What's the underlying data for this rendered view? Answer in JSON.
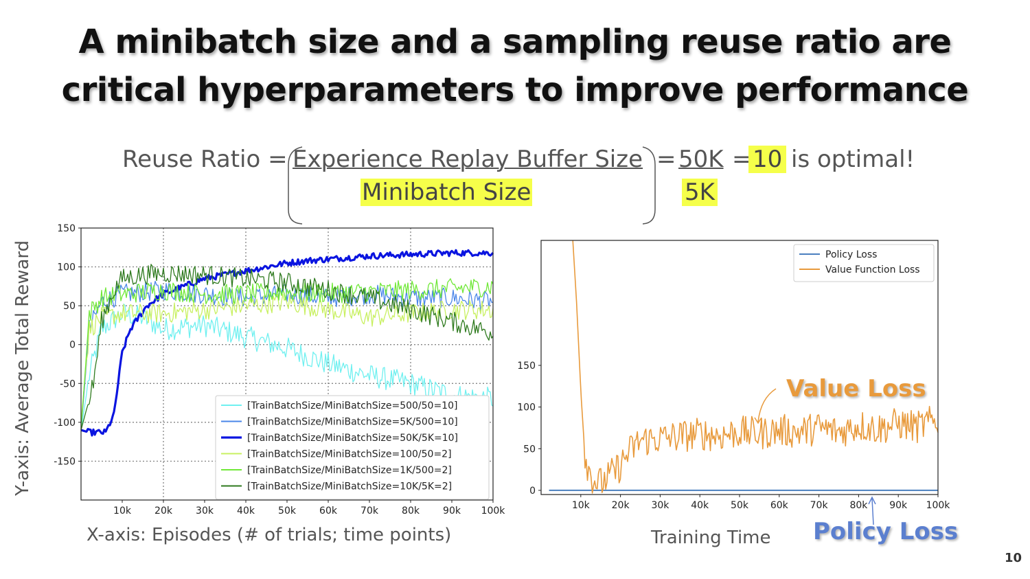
{
  "slide": {
    "title_line1": "A minibatch size and a sampling reuse ratio are",
    "title_line2": "critical hyperparameters to improve performance",
    "equation": {
      "lhs": "Reuse Ratio =",
      "numerator": "Experience Replay Buffer Size",
      "denominator": "Minibatch Size",
      "equals1": "=",
      "num_value": "50K",
      "den_value": "5K",
      "equals2": "=",
      "result": "10",
      "suffix": "is optimal!"
    },
    "x_axis_note": "X-axis: Episodes (# of trials; time points)",
    "y_axis_note": "Y-axis: Average Total Reward",
    "training_time_note": "Training Time",
    "value_loss_callout": "Value Loss",
    "policy_loss_callout": "Policy Loss",
    "page_number": "10"
  },
  "colors": {
    "highlight": "#f5ff4a",
    "value_loss": "#e89a3c",
    "policy_loss": "#5b7fcf"
  },
  "chart_data": [
    {
      "type": "line",
      "xlim": [
        0,
        100000
      ],
      "ylim": [
        -200,
        150
      ],
      "xticks": [
        10000,
        20000,
        30000,
        40000,
        50000,
        60000,
        70000,
        80000,
        90000,
        100000
      ],
      "xtick_labels": [
        "10k",
        "20k",
        "30k",
        "40k",
        "50k",
        "60k",
        "70k",
        "80k",
        "90k",
        "100k"
      ],
      "yticks": [
        150,
        100,
        50,
        0,
        -50,
        -100,
        -150
      ],
      "ytick_labels": [
        "150",
        "100",
        "50",
        "0",
        "-50",
        "-100",
        "-150"
      ],
      "grid": true,
      "legend_position": "bottom-right",
      "series": [
        {
          "name": "[TrainBatchSize/MiniBatchSize=500/50=10]",
          "color": "#6ff0f0",
          "width": 1.3,
          "x": [
            0,
            2000,
            5000,
            10000,
            15000,
            20000,
            30000,
            40000,
            50000,
            60000,
            70000,
            80000,
            90000,
            100000
          ],
          "y": [
            -110,
            -40,
            20,
            40,
            35,
            20,
            25,
            10,
            -5,
            -25,
            -40,
            -50,
            -65,
            -70
          ]
        },
        {
          "name": "[TrainBatchSize/MiniBatchSize=5K/500=10]",
          "color": "#4a86e8",
          "width": 1.3,
          "x": [
            0,
            2000,
            5000,
            10000,
            20000,
            30000,
            40000,
            50000,
            60000,
            70000,
            80000,
            90000,
            100000
          ],
          "y": [
            -110,
            20,
            55,
            65,
            70,
            65,
            60,
            65,
            60,
            65,
            60,
            60,
            55
          ]
        },
        {
          "name": "[TrainBatchSize/MiniBatchSize=50K/5K=10]",
          "color": "#0a14e0",
          "width": 3.2,
          "x": [
            0,
            2000,
            6000,
            8000,
            9000,
            10000,
            12000,
            14000,
            16000,
            20000,
            25000,
            30000,
            35000,
            40000,
            45000,
            50000,
            55000,
            60000,
            65000,
            70000,
            75000,
            80000,
            85000,
            90000,
            95000,
            100000
          ],
          "y": [
            -110,
            -113,
            -113,
            -90,
            -50,
            -10,
            20,
            35,
            50,
            65,
            75,
            85,
            90,
            95,
            100,
            105,
            108,
            110,
            112,
            114,
            115,
            116,
            117,
            118,
            118,
            118
          ]
        },
        {
          "name": "[TrainBatchSize/MiniBatchSize=100/50=2]",
          "color": "#c8f060",
          "width": 1.3,
          "x": [
            0,
            2000,
            5000,
            10000,
            20000,
            30000,
            40000,
            50000,
            60000,
            70000,
            80000,
            90000,
            100000
          ],
          "y": [
            -100,
            20,
            35,
            40,
            40,
            45,
            50,
            55,
            45,
            35,
            40,
            45,
            45
          ]
        },
        {
          "name": "[TrainBatchSize/MiniBatchSize=1K/500=2]",
          "color": "#70e838",
          "width": 1.3,
          "x": [
            0,
            2000,
            5000,
            10000,
            20000,
            30000,
            40000,
            50000,
            60000,
            70000,
            80000,
            90000,
            100000
          ],
          "y": [
            -110,
            40,
            60,
            65,
            70,
            65,
            65,
            68,
            66,
            68,
            70,
            72,
            75
          ]
        },
        {
          "name": "[TrainBatchSize/MiniBatchSize=10K/5K=2]",
          "color": "#2e7a1e",
          "width": 1.3,
          "x": [
            0,
            3000,
            5000,
            8000,
            10000,
            15000,
            20000,
            30000,
            40000,
            50000,
            60000,
            70000,
            80000,
            90000,
            100000
          ],
          "y": [
            -110,
            -50,
            30,
            70,
            85,
            90,
            92,
            90,
            85,
            80,
            70,
            60,
            45,
            30,
            15
          ]
        }
      ]
    },
    {
      "type": "line",
      "xlim": [
        0,
        100000
      ],
      "ylim": [
        -5,
        300
      ],
      "xticks": [
        10000,
        20000,
        30000,
        40000,
        50000,
        60000,
        70000,
        80000,
        90000,
        100000
      ],
      "xtick_labels": [
        "10k",
        "20k",
        "30k",
        "40k",
        "50k",
        "60k",
        "70k",
        "80k",
        "90k",
        "100k"
      ],
      "yticks": [
        150,
        100,
        50,
        0
      ],
      "ytick_labels": [
        "150",
        "100",
        "50",
        "0"
      ],
      "grid": false,
      "legend_position": "top-right",
      "series": [
        {
          "name": "Policy Loss",
          "color": "#4a7fbf",
          "width": 2,
          "x": [
            2000,
            100000
          ],
          "y": [
            0,
            0
          ]
        },
        {
          "name": "Value Function Loss",
          "color": "#e89a3c",
          "width": 1.6,
          "x": [
            8000,
            9000,
            10000,
            11000,
            12000,
            13000,
            14000,
            15000,
            16000,
            18000,
            20000,
            22000,
            25000,
            30000,
            35000,
            40000,
            45000,
            50000,
            55000,
            60000,
            65000,
            70000,
            75000,
            80000,
            85000,
            90000,
            95000,
            100000
          ],
          "y": [
            300,
            220,
            120,
            45,
            25,
            15,
            10,
            8,
            12,
            20,
            30,
            45,
            60,
            62,
            65,
            68,
            66,
            70,
            68,
            72,
            70,
            75,
            70,
            78,
            74,
            80,
            76,
            85
          ]
        }
      ]
    }
  ]
}
